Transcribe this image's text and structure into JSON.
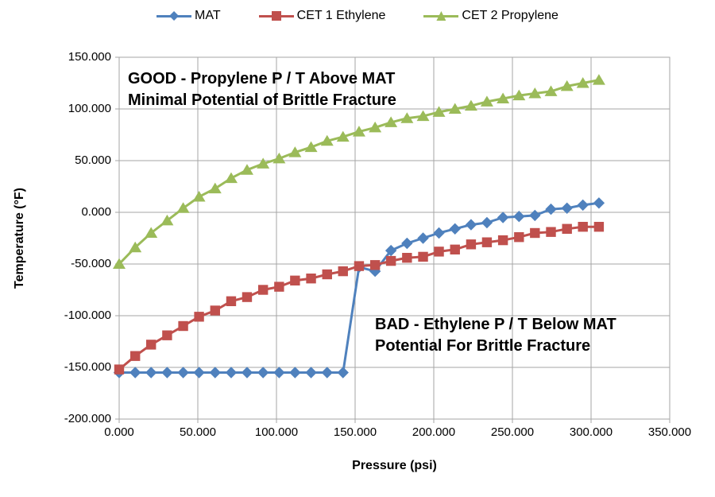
{
  "legend": [
    {
      "label": "MAT",
      "color": "#4F81BD",
      "marker": "diamond"
    },
    {
      "label": "CET 1 Ethylene",
      "color": "#C0504D",
      "marker": "square"
    },
    {
      "label": "CET 2 Propylene",
      "color": "#9BBB59",
      "marker": "triangle"
    }
  ],
  "axes": {
    "x": {
      "title": "Pressure (psi)",
      "ticks": [
        "0.000",
        "50.000",
        "100.000",
        "150.000",
        "200.000",
        "250.000",
        "300.000",
        "350.000"
      ]
    },
    "y": {
      "title": "Temperature (°F)",
      "ticks": [
        "150.000",
        "100.000",
        "50.000",
        "0.000",
        "-50.000",
        "-100.000",
        "-150.000",
        "-200.000"
      ]
    }
  },
  "annotations": {
    "good": {
      "line1": "GOOD - Propylene P / T Above MAT",
      "line2": "Minimal Potential of Brittle Fracture"
    },
    "bad": {
      "line1": "BAD - Ethylene P / T Below MAT",
      "line2": "Potential For Brittle Fracture"
    }
  },
  "style": {
    "grid_color": "#A6A6A6",
    "axis_color": "#A6A6A6",
    "background": "#FFFFFF"
  },
  "chart_data": {
    "type": "line",
    "title": "",
    "xlabel": "Pressure (psi)",
    "ylabel": "Temperature (°F)",
    "xlim": [
      0,
      350
    ],
    "ylim": [
      -200,
      150
    ],
    "grid": true,
    "legend_position": "top",
    "x": [
      0,
      10.2,
      20.3,
      30.5,
      40.7,
      50.8,
      61,
      71.2,
      81.3,
      91.5,
      101.7,
      111.8,
      122,
      132.2,
      142.3,
      152.5,
      162.7,
      172.8,
      183,
      193.2,
      203.3,
      213.5,
      223.7,
      233.8,
      244,
      254.2,
      264.3,
      274.5,
      284.7,
      294.8,
      305
    ],
    "series": [
      {
        "name": "MAT",
        "color": "#4F81BD",
        "marker": "diamond",
        "values": [
          -155,
          -155,
          -155,
          -155,
          -155,
          -155,
          -155,
          -155,
          -155,
          -155,
          -155,
          -155,
          -155,
          -155,
          -155,
          -53,
          -57,
          -37,
          -30,
          -25,
          -20,
          -16,
          -12,
          -10,
          -5,
          -4,
          -3,
          3,
          4,
          7,
          9
        ]
      },
      {
        "name": "CET 1 Ethylene",
        "color": "#C0504D",
        "marker": "square",
        "values": [
          -152,
          -139,
          -128,
          -119,
          -110,
          -101,
          -95,
          -86,
          -82,
          -75,
          -72,
          -66,
          -64,
          -60,
          -57,
          -52,
          -51,
          -47,
          -44,
          -43,
          -38,
          -36,
          -31,
          -29,
          -27,
          -24,
          -20,
          -19,
          -16,
          -14,
          -14
        ]
      },
      {
        "name": "CET 2 Propylene",
        "color": "#9BBB59",
        "marker": "triangle",
        "values": [
          -50,
          -34,
          -20,
          -8,
          4,
          15,
          23,
          33,
          41,
          47,
          52,
          58,
          63,
          69,
          73,
          78,
          82,
          87,
          91,
          93,
          97,
          100,
          103,
          107,
          110,
          113,
          115,
          117,
          122,
          125,
          128
        ]
      }
    ]
  }
}
